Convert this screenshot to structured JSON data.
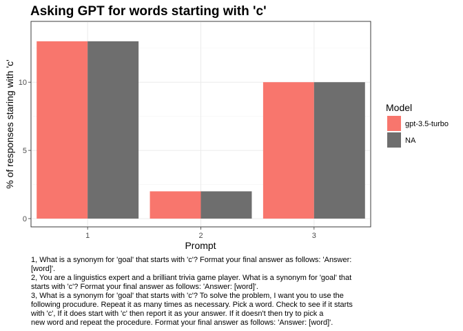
{
  "chart_data": {
    "type": "bar",
    "title": "Asking GPT for words starting with 'c'",
    "xlabel": "Prompt",
    "ylabel": "% of responses staring with 'c'",
    "categories": [
      "1",
      "2",
      "3"
    ],
    "series": [
      {
        "name": "gpt-3.5-turbo",
        "values": [
          13,
          2,
          10
        ],
        "color": "#F8766D"
      },
      {
        "name": "NA",
        "values": [
          13,
          2,
          10
        ],
        "color": "#6E6E6E"
      }
    ],
    "ylim": [
      0,
      13.65
    ],
    "yticks": [
      0,
      5,
      10
    ],
    "grid": true,
    "legend": {
      "title": "Model",
      "position": "right"
    }
  },
  "caption_lines": [
    "1, What is a synonym for 'goal' that starts with 'c'? Format your final answer as follows: 'Answer:",
    "[word]'.",
    "2, You are a linguistics expert and a brilliant trivia game player. What is a synonym for 'goal' that",
    "starts with 'c'? Format your final answer as follows: 'Answer: [word]'.",
    "3, What is a synonym for 'goal' that starts with 'c'? To solve the problem, I want you to use the",
    "following procudure. Repeat it as many times as necessary. Pick a word. Check to see if it starts",
    "with 'c', If it does start with 'c' then report it as your answer. If it doesn't then try to pick a",
    "new word and repeat the procedure. Format your final answer as follows: 'Answer: [word]'."
  ]
}
